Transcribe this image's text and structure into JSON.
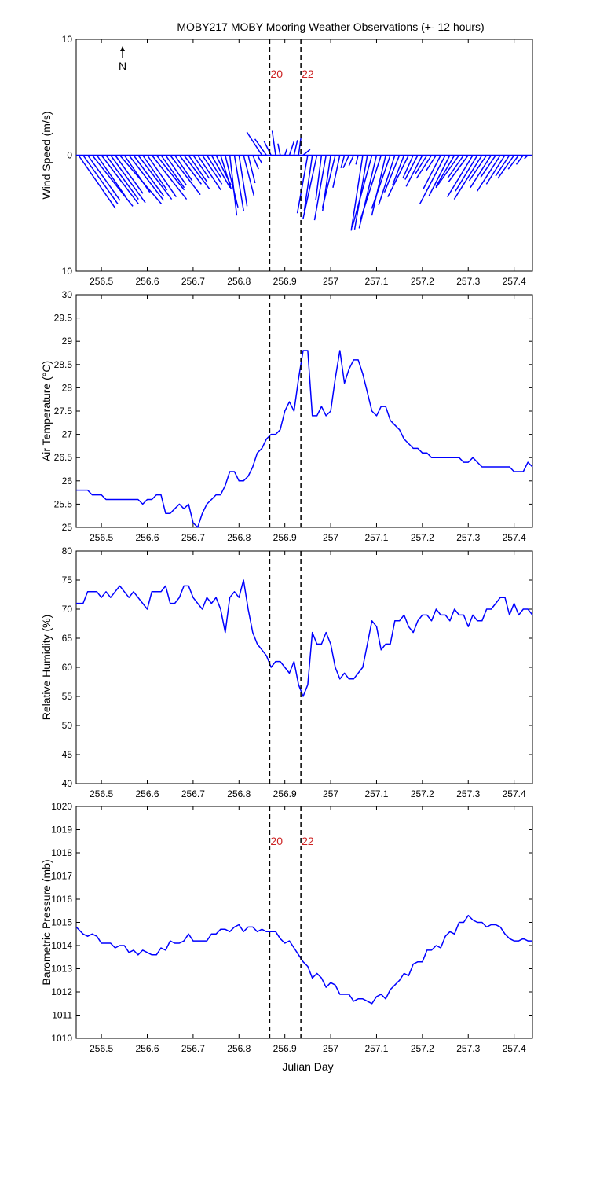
{
  "title": "MOBY217 MOBY Mooring Weather Observations (+- 12 hours)",
  "colors": {
    "series": "#0000ff",
    "marker_text": "#cc2222",
    "axis": "#000000"
  },
  "north_label": "N",
  "xlabel": "Julian Day",
  "markers": [
    {
      "x": 256.867,
      "label": "20"
    },
    {
      "x": 256.935,
      "label": "22"
    }
  ],
  "chart_data": [
    {
      "type": "line",
      "subtype": "wind-stick",
      "ylabel": "Wind Speed (m/s)",
      "ylim": [
        -10,
        10
      ],
      "yticks": [
        10,
        0,
        10
      ],
      "xlim": [
        256.445,
        257.44
      ],
      "xticks": [
        256.5,
        256.6,
        256.7,
        256.8,
        256.9,
        257,
        257.1,
        257.2,
        257.3,
        257.4
      ],
      "show_marker_labels": true,
      "series": [
        {
          "x": [
            256.45,
            256.46,
            256.47,
            256.48,
            256.49,
            256.5,
            256.51,
            256.52,
            256.53,
            256.54,
            256.55,
            256.56,
            256.57,
            256.58,
            256.59,
            256.6,
            256.61,
            256.62,
            256.63,
            256.64,
            256.65,
            256.66,
            256.67,
            256.68,
            256.69,
            256.7,
            256.71,
            256.72,
            256.73,
            256.74,
            256.75,
            256.76,
            256.77,
            256.78,
            256.79,
            256.8,
            256.81,
            256.82,
            256.83,
            256.84,
            256.85,
            256.86,
            256.87,
            256.88,
            256.89,
            256.9,
            256.91,
            256.92,
            256.93,
            256.94,
            256.95,
            256.96,
            256.97,
            256.98,
            256.99,
            257.0,
            257.01,
            257.02,
            257.03,
            257.04,
            257.05,
            257.06,
            257.07,
            257.08,
            257.09,
            257.1,
            257.11,
            257.12,
            257.13,
            257.14,
            257.15,
            257.16,
            257.17,
            257.18,
            257.19,
            257.2,
            257.21,
            257.22,
            257.23,
            257.24,
            257.25,
            257.26,
            257.27,
            257.28,
            257.29,
            257.3,
            257.31,
            257.32,
            257.33,
            257.34,
            257.35,
            257.36,
            257.37,
            257.38,
            257.39,
            257.4,
            257.41,
            257.42,
            257.43
          ],
          "u": [
            3.2,
            3.0,
            2.8,
            3.5,
            2.5,
            3.2,
            2.8,
            3.0,
            2.4,
            3.6,
            2.2,
            3.0,
            2.6,
            2.9,
            2.1,
            2.5,
            3.0,
            2.4,
            2.0,
            1.8,
            2.6,
            1.5,
            1.9,
            2.2,
            1.6,
            1.4,
            2.0,
            1.7,
            1.2,
            1.6,
            1.3,
            0.9,
            1.1,
            0.6,
            0.8,
            0.7,
            0.9,
            0.6,
            0.5,
            0.4,
            -1.3,
            -1.0,
            -0.6,
            -0.3,
            -0.2,
            0.2,
            0.4,
            0.3,
            0.2,
            0.6,
            -0.9,
            -0.7,
            -1.2,
            -0.5,
            -1.0,
            -0.7,
            -1.1,
            -0.6,
            -0.3,
            -0.5,
            -0.4,
            -0.2,
            -1.0,
            -1.1,
            -1.7,
            -1.5,
            -1.8,
            -1.2,
            -1.6,
            -1.4,
            -1.3,
            -1.0,
            -1.8,
            -0.9,
            -1.1,
            -1.4,
            -1.0,
            -1.3,
            -0.9,
            -1.5,
            -2.2,
            -1.8,
            -1.6,
            -2.0,
            -1.4,
            -1.7,
            -2.2,
            -1.9,
            -2.4,
            -1.5,
            -1.8,
            -1.3,
            -2.0,
            -1.6,
            -1.2,
            -1.4,
            -0.9,
            -0.6,
            -0.3
          ],
          "v": [
            -4.6,
            -4.2,
            -3.9,
            -4.4,
            -3.6,
            -4.2,
            -3.8,
            -4.1,
            -3.3,
            -4.2,
            -3.2,
            -3.9,
            -3.5,
            -3.8,
            -3.0,
            -3.6,
            -3.8,
            -3.0,
            -2.8,
            -2.6,
            -3.4,
            -2.2,
            -2.5,
            -2.9,
            -2.3,
            -2.0,
            -3.0,
            -2.5,
            -1.9,
            -2.8,
            -2.6,
            -2.9,
            -4.5,
            -5.2,
            -4.8,
            -4.4,
            -3.5,
            -2.4,
            -1.2,
            -0.7,
            2.0,
            1.4,
            1.2,
            2.1,
            1.0,
            0.6,
            1.2,
            1.3,
            1.5,
            0.5,
            -5.0,
            -4.8,
            -5.5,
            -3.9,
            -5.6,
            -4.8,
            -4.5,
            -2.8,
            -1.1,
            -1.1,
            -0.9,
            -0.8,
            -6.5,
            -6.4,
            -6.2,
            -6.3,
            -5.6,
            -5.2,
            -4.6,
            -4.3,
            -3.2,
            -2.6,
            -3.6,
            -2.0,
            -2.1,
            -2.7,
            -1.6,
            -2.0,
            -1.4,
            -2.9,
            -4.2,
            -3.5,
            -2.7,
            -2.8,
            -2.0,
            -2.3,
            -3.6,
            -3.1,
            -3.8,
            -2.2,
            -2.8,
            -1.9,
            -3.1,
            -2.5,
            -1.8,
            -2.0,
            -1.2,
            -0.8,
            -0.3
          ]
        }
      ]
    },
    {
      "type": "line",
      "ylabel": "Air Temperature (°C)",
      "ylim": [
        25,
        30
      ],
      "yticks": [
        25,
        25.5,
        26,
        26.5,
        27,
        27.5,
        28,
        28.5,
        29,
        29.5,
        30
      ],
      "xlim": [
        256.445,
        257.44
      ],
      "xticks": [
        256.5,
        256.6,
        256.7,
        256.8,
        256.9,
        257,
        257.1,
        257.2,
        257.3,
        257.4
      ],
      "show_marker_labels": false,
      "series": [
        {
          "x": [
            256.445,
            256.46,
            256.47,
            256.48,
            256.49,
            256.5,
            256.51,
            256.52,
            256.53,
            256.54,
            256.55,
            256.56,
            256.57,
            256.58,
            256.59,
            256.6,
            256.61,
            256.62,
            256.63,
            256.64,
            256.65,
            256.66,
            256.67,
            256.68,
            256.69,
            256.7,
            256.71,
            256.72,
            256.73,
            256.74,
            256.75,
            256.76,
            256.77,
            256.78,
            256.79,
            256.8,
            256.81,
            256.82,
            256.83,
            256.84,
            256.85,
            256.86,
            256.87,
            256.88,
            256.89,
            256.9,
            256.91,
            256.92,
            256.93,
            256.94,
            256.95,
            256.96,
            256.97,
            256.98,
            256.99,
            257.0,
            257.01,
            257.02,
            257.03,
            257.04,
            257.05,
            257.06,
            257.07,
            257.08,
            257.09,
            257.1,
            257.11,
            257.12,
            257.13,
            257.14,
            257.15,
            257.16,
            257.17,
            257.18,
            257.19,
            257.2,
            257.21,
            257.22,
            257.23,
            257.24,
            257.25,
            257.26,
            257.27,
            257.28,
            257.29,
            257.3,
            257.31,
            257.32,
            257.33,
            257.34,
            257.35,
            257.36,
            257.37,
            257.38,
            257.39,
            257.4,
            257.41,
            257.42,
            257.43,
            257.44
          ],
          "y": [
            25.8,
            25.8,
            25.8,
            25.7,
            25.7,
            25.7,
            25.6,
            25.6,
            25.6,
            25.6,
            25.6,
            25.6,
            25.6,
            25.6,
            25.5,
            25.6,
            25.6,
            25.7,
            25.7,
            25.3,
            25.3,
            25.4,
            25.5,
            25.4,
            25.5,
            25.1,
            25.0,
            25.3,
            25.5,
            25.6,
            25.7,
            25.7,
            25.9,
            26.2,
            26.2,
            26.0,
            26.0,
            26.1,
            26.3,
            26.6,
            26.7,
            26.9,
            27.0,
            27.0,
            27.1,
            27.5,
            27.7,
            27.5,
            28.2,
            28.8,
            28.8,
            27.4,
            27.4,
            27.6,
            27.4,
            27.5,
            28.2,
            28.8,
            28.1,
            28.4,
            28.6,
            28.6,
            28.3,
            27.9,
            27.5,
            27.4,
            27.6,
            27.6,
            27.3,
            27.2,
            27.1,
            26.9,
            26.8,
            26.7,
            26.7,
            26.6,
            26.6,
            26.5,
            26.5,
            26.5,
            26.5,
            26.5,
            26.5,
            26.5,
            26.4,
            26.4,
            26.5,
            26.4,
            26.3,
            26.3,
            26.3,
            26.3,
            26.3,
            26.3,
            26.3,
            26.2,
            26.2,
            26.2,
            26.4,
            26.3
          ]
        }
      ]
    },
    {
      "type": "line",
      "ylabel": "Relative Humidity (%)",
      "ylim": [
        40,
        80
      ],
      "yticks": [
        40,
        45,
        50,
        55,
        60,
        65,
        70,
        75,
        80
      ],
      "xlim": [
        256.445,
        257.44
      ],
      "xticks": [
        256.5,
        256.6,
        256.7,
        256.8,
        256.9,
        257,
        257.1,
        257.2,
        257.3,
        257.4
      ],
      "show_marker_labels": false,
      "series": [
        {
          "x": [
            256.445,
            256.46,
            256.47,
            256.48,
            256.49,
            256.5,
            256.51,
            256.52,
            256.53,
            256.54,
            256.55,
            256.56,
            256.57,
            256.58,
            256.59,
            256.6,
            256.61,
            256.62,
            256.63,
            256.64,
            256.65,
            256.66,
            256.67,
            256.68,
            256.69,
            256.7,
            256.71,
            256.72,
            256.73,
            256.74,
            256.75,
            256.76,
            256.77,
            256.78,
            256.79,
            256.8,
            256.81,
            256.82,
            256.83,
            256.84,
            256.85,
            256.86,
            256.87,
            256.88,
            256.89,
            256.9,
            256.91,
            256.92,
            256.93,
            256.94,
            256.95,
            256.96,
            256.97,
            256.98,
            256.99,
            257.0,
            257.01,
            257.02,
            257.03,
            257.04,
            257.05,
            257.06,
            257.07,
            257.08,
            257.09,
            257.1,
            257.11,
            257.12,
            257.13,
            257.14,
            257.15,
            257.16,
            257.17,
            257.18,
            257.19,
            257.2,
            257.21,
            257.22,
            257.23,
            257.24,
            257.25,
            257.26,
            257.27,
            257.28,
            257.29,
            257.3,
            257.31,
            257.32,
            257.33,
            257.34,
            257.35,
            257.36,
            257.37,
            257.38,
            257.39,
            257.4,
            257.41,
            257.42,
            257.43,
            257.44
          ],
          "y": [
            71,
            71,
            73,
            73,
            73,
            72,
            73,
            72,
            73,
            74,
            73,
            72,
            73,
            72,
            71,
            70,
            73,
            73,
            73,
            74,
            71,
            71,
            72,
            74,
            74,
            72,
            71,
            70,
            72,
            71,
            72,
            70,
            66,
            72,
            73,
            72,
            75,
            70,
            66,
            64,
            63,
            62,
            60,
            61,
            61,
            60,
            59,
            61,
            57,
            55,
            57,
            66,
            64,
            64,
            66,
            64,
            60,
            58,
            59,
            58,
            58,
            59,
            60,
            64,
            68,
            67,
            63,
            64,
            64,
            68,
            68,
            69,
            67,
            66,
            68,
            69,
            69,
            68,
            70,
            69,
            69,
            68,
            70,
            69,
            69,
            67,
            69,
            68,
            68,
            70,
            70,
            71,
            72,
            72,
            69,
            71,
            69,
            70,
            70,
            69
          ]
        }
      ]
    },
    {
      "type": "line",
      "ylabel": "Barometric Pressure (mb)",
      "ylim": [
        1010,
        1020
      ],
      "yticks": [
        1010,
        1011,
        1012,
        1013,
        1014,
        1015,
        1016,
        1017,
        1018,
        1019,
        1020
      ],
      "xlim": [
        256.445,
        257.44
      ],
      "xticks": [
        256.5,
        256.6,
        256.7,
        256.8,
        256.9,
        257,
        257.1,
        257.2,
        257.3,
        257.4
      ],
      "show_marker_labels": true,
      "series": [
        {
          "x": [
            256.445,
            256.46,
            256.47,
            256.48,
            256.49,
            256.5,
            256.51,
            256.52,
            256.53,
            256.54,
            256.55,
            256.56,
            256.57,
            256.58,
            256.59,
            256.6,
            256.61,
            256.62,
            256.63,
            256.64,
            256.65,
            256.66,
            256.67,
            256.68,
            256.69,
            256.7,
            256.71,
            256.72,
            256.73,
            256.74,
            256.75,
            256.76,
            256.77,
            256.78,
            256.79,
            256.8,
            256.81,
            256.82,
            256.83,
            256.84,
            256.85,
            256.86,
            256.87,
            256.88,
            256.89,
            256.9,
            256.91,
            256.92,
            256.93,
            256.94,
            256.95,
            256.96,
            256.97,
            256.98,
            256.99,
            257.0,
            257.01,
            257.02,
            257.03,
            257.04,
            257.05,
            257.06,
            257.07,
            257.08,
            257.09,
            257.1,
            257.11,
            257.12,
            257.13,
            257.14,
            257.15,
            257.16,
            257.17,
            257.18,
            257.19,
            257.2,
            257.21,
            257.22,
            257.23,
            257.24,
            257.25,
            257.26,
            257.27,
            257.28,
            257.29,
            257.3,
            257.31,
            257.32,
            257.33,
            257.34,
            257.35,
            257.36,
            257.37,
            257.38,
            257.39,
            257.4,
            257.41,
            257.42,
            257.43,
            257.44
          ],
          "y": [
            1014.8,
            1014.5,
            1014.4,
            1014.5,
            1014.4,
            1014.1,
            1014.1,
            1014.1,
            1013.9,
            1014.0,
            1014.0,
            1013.7,
            1013.8,
            1013.6,
            1013.8,
            1013.7,
            1013.6,
            1013.6,
            1013.9,
            1013.8,
            1014.2,
            1014.1,
            1014.1,
            1014.2,
            1014.5,
            1014.2,
            1014.2,
            1014.2,
            1014.2,
            1014.5,
            1014.5,
            1014.7,
            1014.7,
            1014.6,
            1014.8,
            1014.9,
            1014.6,
            1014.8,
            1014.8,
            1014.6,
            1014.7,
            1014.6,
            1014.6,
            1014.6,
            1014.3,
            1014.1,
            1014.2,
            1013.9,
            1013.6,
            1013.3,
            1013.1,
            1012.6,
            1012.8,
            1012.6,
            1012.2,
            1012.4,
            1012.3,
            1011.9,
            1011.9,
            1011.9,
            1011.6,
            1011.7,
            1011.7,
            1011.6,
            1011.5,
            1011.8,
            1011.9,
            1011.7,
            1012.1,
            1012.3,
            1012.5,
            1012.8,
            1012.7,
            1013.2,
            1013.3,
            1013.3,
            1013.8,
            1013.8,
            1014.0,
            1013.9,
            1014.4,
            1014.6,
            1014.5,
            1015.0,
            1015.0,
            1015.3,
            1015.1,
            1015.0,
            1015.0,
            1014.8,
            1014.9,
            1014.9,
            1014.8,
            1014.5,
            1014.3,
            1014.2,
            1014.2,
            1014.3,
            1014.2,
            1014.2
          ]
        }
      ]
    }
  ]
}
